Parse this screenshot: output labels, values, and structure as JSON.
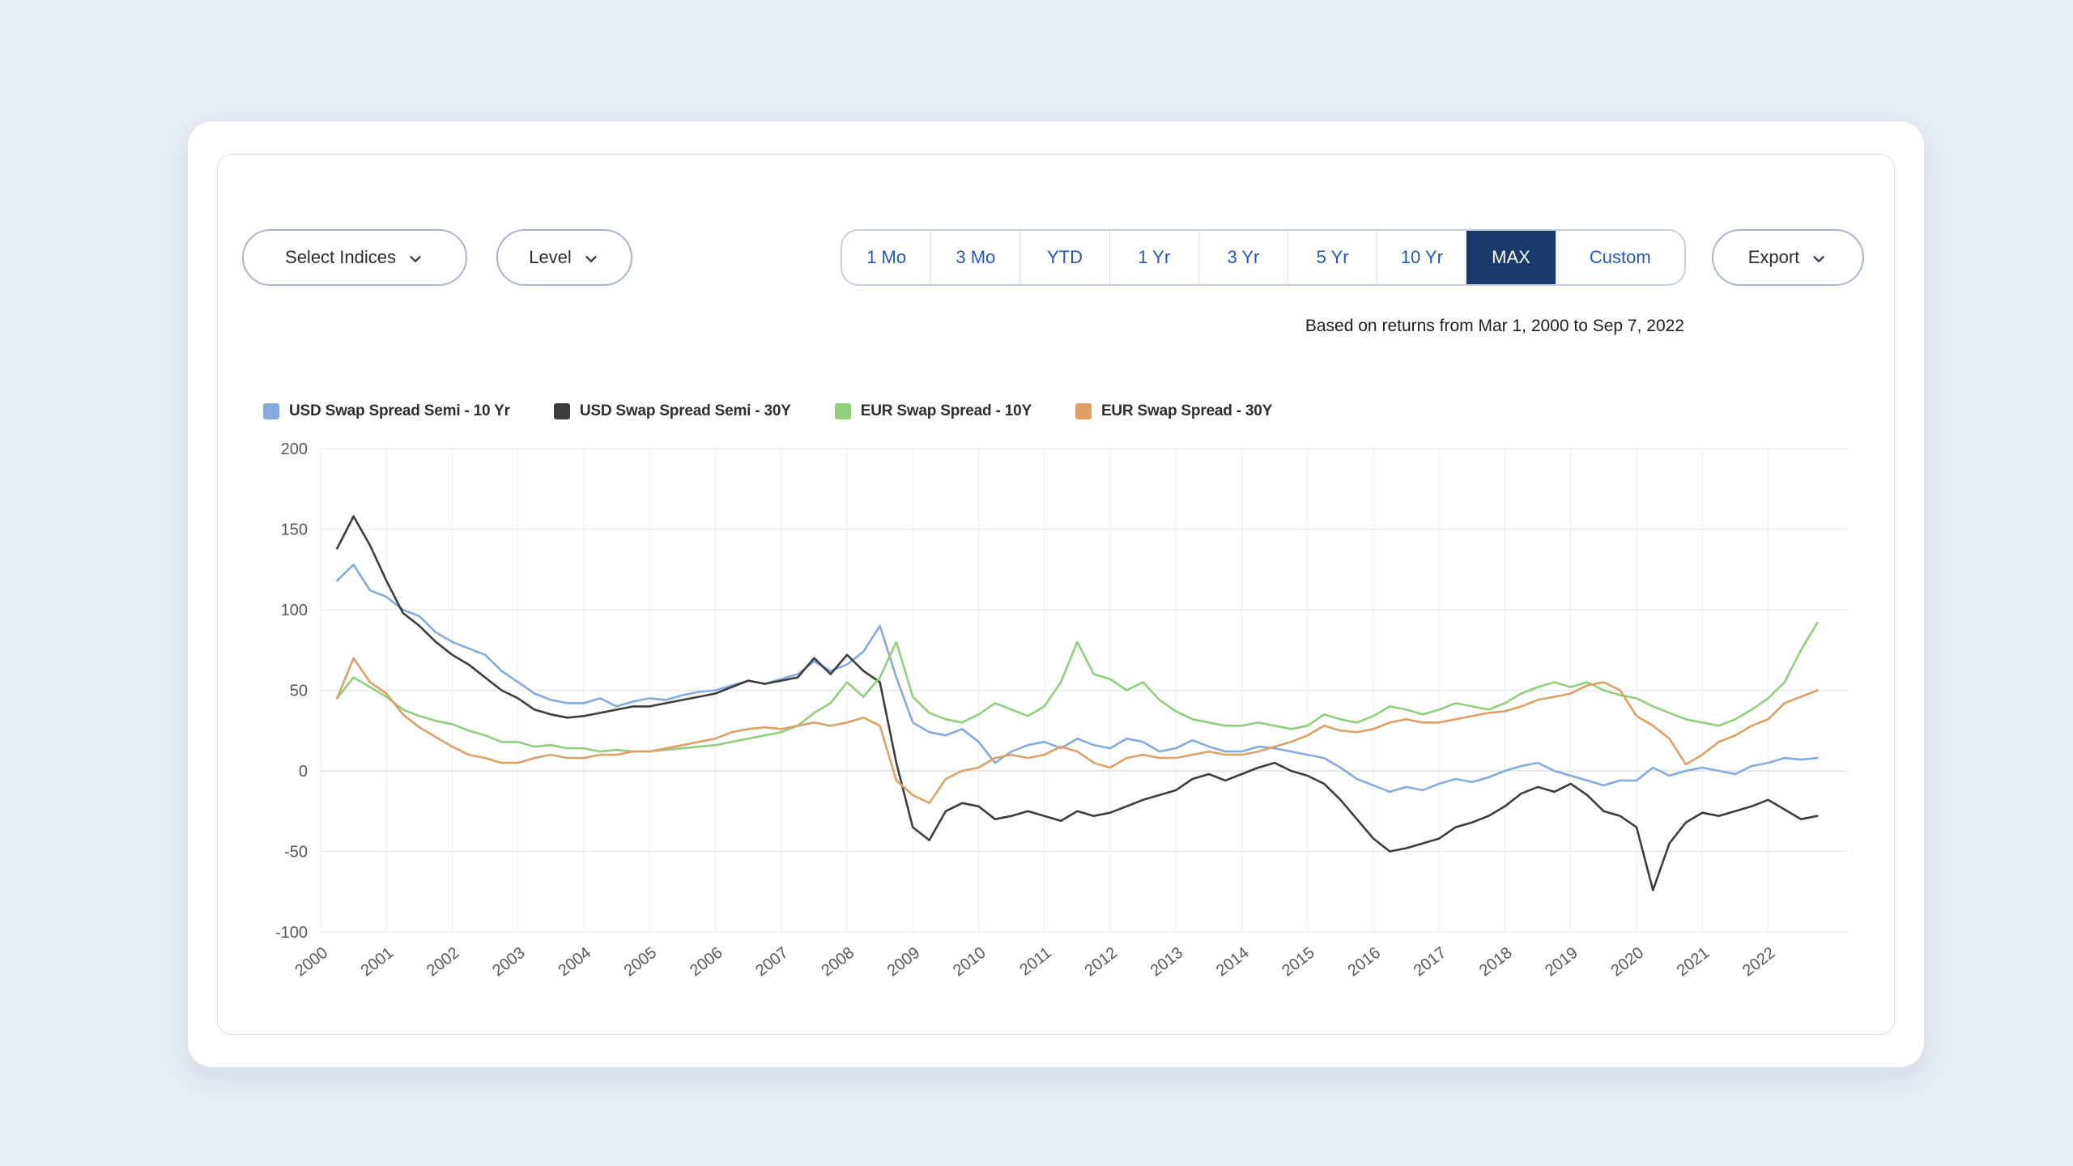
{
  "window": {
    "background": "#e8edf4",
    "card_background": "#ffffff"
  },
  "toolbar": {
    "select_indices_label": "Select Indices",
    "level_label": "Level",
    "export_label": "Export"
  },
  "ranges": {
    "items": [
      "1 Mo",
      "3 Mo",
      "YTD",
      "1 Yr",
      "3 Yr",
      "5 Yr",
      "10 Yr",
      "MAX",
      "Custom"
    ],
    "selected": "MAX",
    "selected_bg": "#1a3a6b",
    "link_color": "#2456c0"
  },
  "subtitle": "Based on returns from Mar 1, 2000 to Sep 7, 2022",
  "legend": [
    {
      "label": "USD Swap Spread Semi - 10 Yr",
      "color": "#85abde"
    },
    {
      "label": "USD Swap Spread Semi - 30Y",
      "color": "#3d3d3d"
    },
    {
      "label": "EUR Swap Spread - 10Y",
      "color": "#8fd07c"
    },
    {
      "label": "EUR Swap Spread - 30Y",
      "color": "#dea165"
    }
  ],
  "chart_data": {
    "type": "line",
    "title": "",
    "xlabel": "",
    "ylabel": "",
    "grid": "both",
    "legend_position": "top",
    "ylim": [
      -100,
      200
    ],
    "yticks": [
      200,
      150,
      100,
      50,
      0,
      -50,
      -100
    ],
    "xlim": [
      2000,
      2023.2
    ],
    "xticks": [
      2000,
      2001,
      2002,
      2003,
      2004,
      2005,
      2006,
      2007,
      2008,
      2009,
      2010,
      2011,
      2012,
      2013,
      2014,
      2015,
      2016,
      2017,
      2018,
      2019,
      2020,
      2021,
      2022
    ],
    "x_unit": "year (quarterly samples, Mar 2000 - Sep 2022)",
    "y_unit": "basis points",
    "x": [
      2000.25,
      2000.5,
      2000.75,
      2001,
      2001.25,
      2001.5,
      2001.75,
      2002,
      2002.25,
      2002.5,
      2002.75,
      2003,
      2003.25,
      2003.5,
      2003.75,
      2004,
      2004.25,
      2004.5,
      2004.75,
      2005,
      2005.25,
      2005.5,
      2005.75,
      2006,
      2006.25,
      2006.5,
      2006.75,
      2007,
      2007.25,
      2007.5,
      2007.75,
      2008,
      2008.25,
      2008.5,
      2008.75,
      2009,
      2009.25,
      2009.5,
      2009.75,
      2010,
      2010.25,
      2010.5,
      2010.75,
      2011,
      2011.25,
      2011.5,
      2011.75,
      2012,
      2012.25,
      2012.5,
      2012.75,
      2013,
      2013.25,
      2013.5,
      2013.75,
      2014,
      2014.25,
      2014.5,
      2014.75,
      2015,
      2015.25,
      2015.5,
      2015.75,
      2016,
      2016.25,
      2016.5,
      2016.75,
      2017,
      2017.25,
      2017.5,
      2017.75,
      2018,
      2018.25,
      2018.5,
      2018.75,
      2019,
      2019.25,
      2019.5,
      2019.75,
      2020,
      2020.25,
      2020.5,
      2020.75,
      2021,
      2021.25,
      2021.5,
      2021.75,
      2022,
      2022.25,
      2022.5,
      2022.75
    ],
    "series": [
      {
        "name": "USD Swap Spread Semi - 10 Yr",
        "color": "#85abde",
        "values": [
          118,
          128,
          112,
          108,
          100,
          96,
          86,
          80,
          76,
          72,
          62,
          55,
          48,
          44,
          42,
          42,
          45,
          40,
          43,
          45,
          44,
          47,
          49,
          50,
          53,
          56,
          54,
          57,
          60,
          68,
          62,
          66,
          74,
          90,
          58,
          30,
          24,
          22,
          26,
          18,
          5,
          12,
          16,
          18,
          14,
          20,
          16,
          14,
          20,
          18,
          12,
          14,
          19,
          15,
          12,
          12,
          15,
          14,
          12,
          10,
          8,
          2,
          -5,
          -9,
          -13,
          -10,
          -12,
          -8,
          -5,
          -7,
          -4,
          0,
          3,
          5,
          0,
          -3,
          -6,
          -9,
          -6,
          -6,
          2,
          -3,
          0,
          2,
          0,
          -2,
          3,
          5,
          8,
          7,
          8
        ]
      },
      {
        "name": "USD Swap Spread Semi - 30Y",
        "color": "#3d3d3d",
        "values": [
          138,
          158,
          140,
          118,
          98,
          90,
          80,
          72,
          66,
          58,
          50,
          45,
          38,
          35,
          33,
          34,
          36,
          38,
          40,
          40,
          42,
          44,
          46,
          48,
          52,
          56,
          54,
          56,
          58,
          70,
          60,
          72,
          62,
          55,
          5,
          -35,
          -43,
          -25,
          -20,
          -22,
          -30,
          -28,
          -25,
          -28,
          -31,
          -25,
          -28,
          -26,
          -22,
          -18,
          -15,
          -12,
          -5,
          -2,
          -6,
          -2,
          2,
          5,
          0,
          -3,
          -8,
          -18,
          -30,
          -42,
          -50,
          -48,
          -45,
          -42,
          -35,
          -32,
          -28,
          -22,
          -14,
          -10,
          -13,
          -8,
          -15,
          -25,
          -28,
          -35,
          -74,
          -45,
          -32,
          -26,
          -28,
          -25,
          -22,
          -18,
          -24,
          -30,
          -28
        ]
      },
      {
        "name": "EUR Swap Spread - 10Y",
        "color": "#8fd07c",
        "values": [
          45,
          58,
          52,
          46,
          38,
          34,
          31,
          29,
          25,
          22,
          18,
          18,
          15,
          16,
          14,
          14,
          12,
          13,
          12,
          12,
          13,
          14,
          15,
          16,
          18,
          20,
          22,
          24,
          28,
          36,
          42,
          55,
          46,
          58,
          80,
          46,
          36,
          32,
          30,
          35,
          42,
          38,
          34,
          40,
          55,
          80,
          60,
          57,
          50,
          55,
          44,
          37,
          32,
          30,
          28,
          28,
          30,
          28,
          26,
          28,
          35,
          32,
          30,
          34,
          40,
          38,
          35,
          38,
          42,
          40,
          38,
          42,
          48,
          52,
          55,
          52,
          55,
          50,
          47,
          45,
          40,
          36,
          32,
          30,
          28,
          32,
          38,
          45,
          55,
          75,
          92
        ]
      },
      {
        "name": "EUR Swap Spread - 30Y",
        "color": "#dea165",
        "values": [
          45,
          70,
          55,
          48,
          35,
          27,
          21,
          15,
          10,
          8,
          5,
          5,
          8,
          10,
          8,
          8,
          10,
          10,
          12,
          12,
          14,
          16,
          18,
          20,
          24,
          26,
          27,
          26,
          28,
          30,
          28,
          30,
          33,
          28,
          -6,
          -15,
          -20,
          -5,
          0,
          2,
          8,
          10,
          8,
          10,
          15,
          12,
          5,
          2,
          8,
          10,
          8,
          8,
          10,
          12,
          10,
          10,
          12,
          15,
          18,
          22,
          28,
          25,
          24,
          26,
          30,
          32,
          30,
          30,
          32,
          34,
          36,
          37,
          40,
          44,
          46,
          48,
          53,
          55,
          50,
          34,
          28,
          20,
          4,
          10,
          18,
          22,
          28,
          32,
          42,
          46,
          50
        ]
      }
    ]
  }
}
